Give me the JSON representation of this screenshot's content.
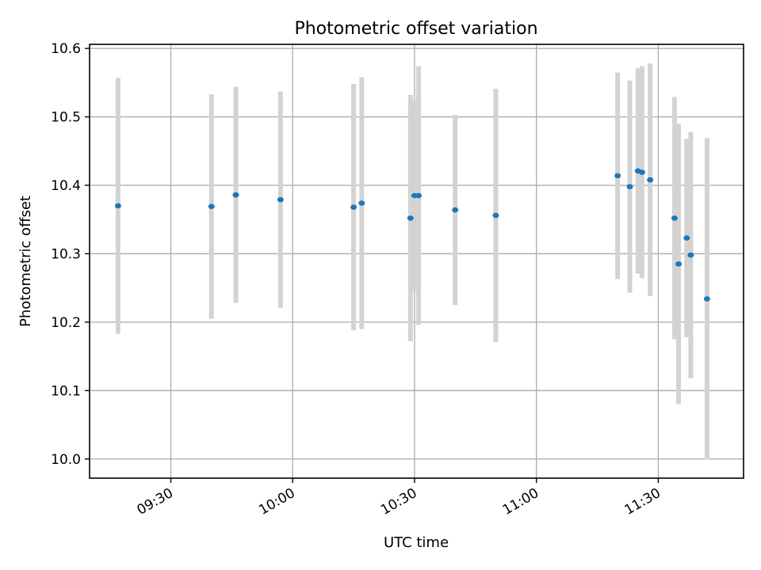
{
  "chart_data": {
    "type": "scatter",
    "title": "Photometric offset variation",
    "xlabel": "UTC time",
    "ylabel": "Photometric offset",
    "xlim": [
      "09:10",
      "11:51"
    ],
    "ylim": [
      9.972,
      10.606
    ],
    "grid": true,
    "x_ticks": [
      "09:30",
      "10:00",
      "10:30",
      "11:00",
      "11:30"
    ],
    "y_ticks": [
      10.0,
      10.1,
      10.2,
      10.3,
      10.4,
      10.5,
      10.6
    ],
    "y_tick_labels": [
      "10.0",
      "10.1",
      "10.2",
      "10.3",
      "10.4",
      "10.5",
      "10.6"
    ],
    "series": [
      {
        "marker_color": "#1f77b4",
        "errorbar_color": "#d3d3d3",
        "points": [
          {
            "x": "09:17",
            "y": 10.37,
            "err": 0.187
          },
          {
            "x": "09:40",
            "y": 10.369,
            "err": 0.164
          },
          {
            "x": "09:46",
            "y": 10.386,
            "err": 0.158
          },
          {
            "x": "09:46",
            "y": 10.386,
            "err": 0.15
          },
          {
            "x": "09:57",
            "y": 10.379,
            "err": 0.158
          },
          {
            "x": "10:15",
            "y": 10.368,
            "err": 0.18
          },
          {
            "x": "10:17",
            "y": 10.374,
            "err": 0.184
          },
          {
            "x": "10:29",
            "y": 10.352,
            "err": 0.18
          },
          {
            "x": "10:30",
            "y": 10.385,
            "err": 0.14
          },
          {
            "x": "10:31",
            "y": 10.385,
            "err": 0.189
          },
          {
            "x": "10:40",
            "y": 10.364,
            "err": 0.139
          },
          {
            "x": "10:50",
            "y": 10.356,
            "err": 0.185
          },
          {
            "x": "11:20",
            "y": 10.414,
            "err": 0.151
          },
          {
            "x": "11:23",
            "y": 10.398,
            "err": 0.155
          },
          {
            "x": "11:25",
            "y": 10.421,
            "err": 0.15
          },
          {
            "x": "11:26",
            "y": 10.419,
            "err": 0.155
          },
          {
            "x": "11:28",
            "y": 10.408,
            "err": 0.17
          },
          {
            "x": "11:34",
            "y": 10.352,
            "err": 0.177
          },
          {
            "x": "11:35",
            "y": 10.285,
            "err": 0.205
          },
          {
            "x": "11:37",
            "y": 10.323,
            "err": 0.145
          },
          {
            "x": "11:38",
            "y": 10.298,
            "err": 0.18
          },
          {
            "x": "11:42",
            "y": 10.234,
            "err": 0.235
          }
        ]
      }
    ]
  }
}
